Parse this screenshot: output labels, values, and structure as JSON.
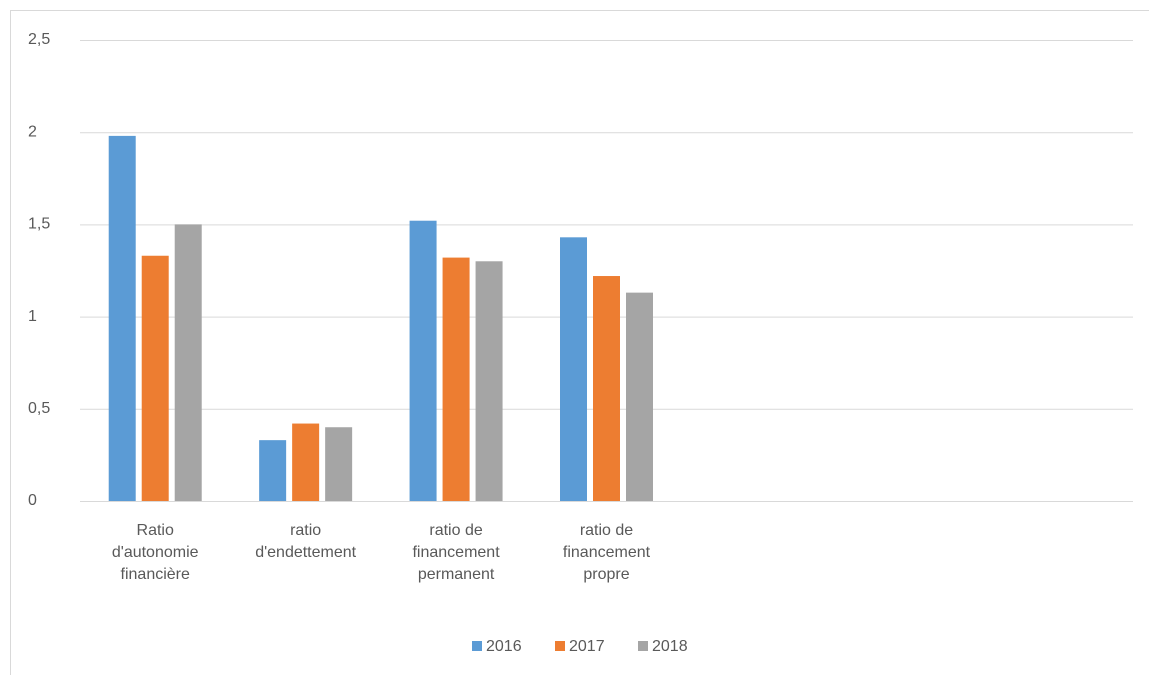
{
  "chart_data": {
    "type": "bar",
    "categories": [
      "Ratio d'autonomie financière",
      "ratio d'endettement",
      "ratio de financement permanent",
      "ratio de financement propre",
      null,
      null,
      null
    ],
    "series": [
      {
        "name": "2016",
        "color": "#5b9bd5",
        "values": [
          1.98,
          0.33,
          1.52,
          1.43,
          null,
          null,
          null
        ]
      },
      {
        "name": "2017",
        "color": "#ed7d31",
        "values": [
          1.33,
          0.42,
          1.32,
          1.22,
          null,
          null,
          null
        ]
      },
      {
        "name": "2018",
        "color": "#a5a5a5",
        "values": [
          1.5,
          0.4,
          1.3,
          1.13,
          null,
          null,
          null
        ]
      }
    ],
    "ylim": [
      0,
      2.5
    ],
    "yticks": [
      0,
      {
        "value": 0.5,
        "label": "0,5"
      },
      1,
      {
        "value": 1.5,
        "label": "1,5"
      },
      2,
      {
        "value": 2.5,
        "label": "2,5"
      }
    ],
    "grid": true,
    "legend": "bottom"
  }
}
